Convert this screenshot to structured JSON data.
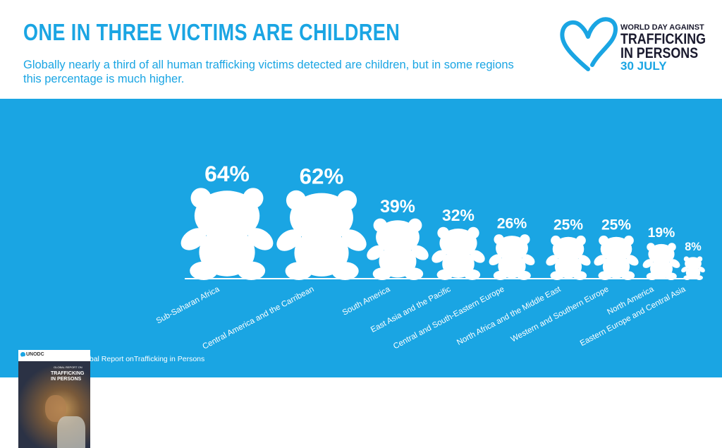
{
  "header": {
    "title": "ONE IN THREE VICTIMS ARE CHILDREN",
    "subtitle": "Globally nearly a third of all human trafficking victims detected are children, but in some regions this percentage is much higher."
  },
  "logo": {
    "line1": "WORLD DAY AGAINST",
    "line2": "TRAFFICKING",
    "line3": "IN PERSONS",
    "line4": "30 JULY",
    "icon": "heart-outline-icon"
  },
  "colors": {
    "accent": "#1aa5e3",
    "dark": "#1a1a2e",
    "panel": "#1aa5e3",
    "mark": "#ffffff"
  },
  "chart_data": {
    "type": "bar",
    "mark": "teddy-bear-icon",
    "categories": [
      "Sub-Saharan Africa",
      "Central America and the Carribean",
      "South America",
      "East Asia and the Pacific",
      "Central and South-Eastern Europe",
      "North Africa and the Middle East",
      "Western and Southern Europe",
      "North America",
      "Eastern Europe and Central Asia"
    ],
    "values": [
      64,
      62,
      39,
      32,
      26,
      25,
      25,
      19,
      8
    ],
    "value_labels": [
      "64%",
      "62%",
      "39%",
      "32%",
      "26%",
      "25%",
      "25%",
      "19%",
      "8%"
    ],
    "unit": "%"
  },
  "report_cover": {
    "org": "UNODC",
    "line1": "GLOBAL REPORT ON",
    "line2": "TRAFFICKING",
    "line3": "IN PERSONS"
  },
  "source": "Source: UNODC Global Report onTrafficking in Persons"
}
